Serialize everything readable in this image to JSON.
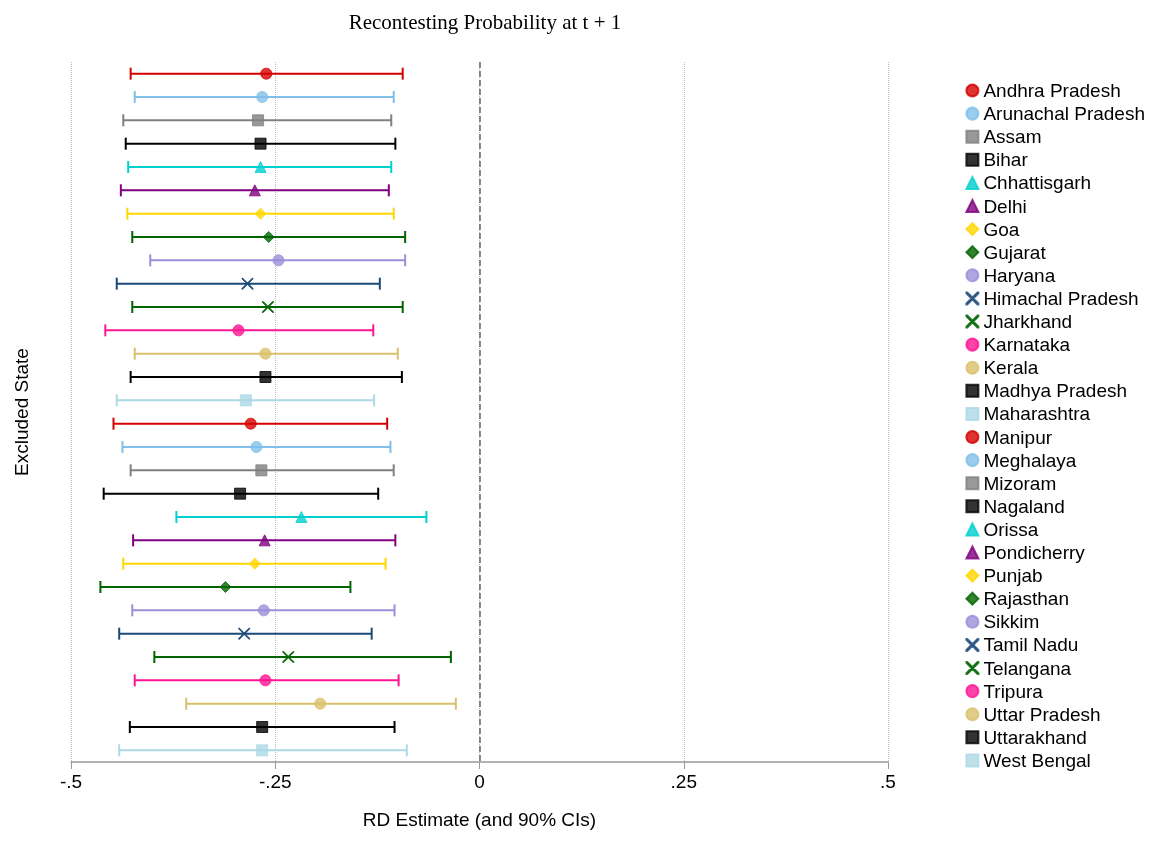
{
  "chart_data": {
    "type": "scatter",
    "orientation": "horizontal",
    "title": "Recontesting Probability at t + 1",
    "xlabel": "RD Estimate (and 90% CIs)",
    "ylabel": "Excluded State",
    "categories": [
      null,
      null,
      null,
      null,
      null,
      null,
      null,
      null,
      null,
      null,
      null,
      null,
      null,
      null,
      null,
      null,
      null,
      null,
      null,
      null,
      null,
      null,
      null,
      null,
      null,
      null,
      null,
      null,
      null,
      null
    ],
    "xlim": [
      -0.5,
      0.5
    ],
    "xticks": [
      {
        "value": -0.5,
        "label": "-.5"
      },
      {
        "value": -0.25,
        "label": "-.25"
      },
      0,
      {
        "value": 0.25,
        "label": ".25"
      },
      {
        "value": 0.5,
        "label": ".5"
      }
    ],
    "tick_labels": "x",
    "grid": "x",
    "legend": "right",
    "ref_lines": [
      {
        "axis": "x",
        "value": 0,
        "line_style": "dashed",
        "color": "#666666"
      }
    ],
    "series": [
      {
        "name": "Andhra Pradesh",
        "color": "#d40000",
        "marker": "circle",
        "values": [
          -0.261,
          null,
          null,
          null,
          null,
          null,
          null,
          null,
          null,
          null,
          null,
          null,
          null,
          null,
          null,
          null,
          null,
          null,
          null,
          null,
          null,
          null,
          null,
          null,
          null,
          null,
          null,
          null,
          null,
          null
        ],
        "errors": [
          [
            -0.427,
            -0.094
          ],
          null,
          null,
          null,
          null,
          null,
          null,
          null,
          null,
          null,
          null,
          null,
          null,
          null,
          null,
          null,
          null,
          null,
          null,
          null,
          null,
          null,
          null,
          null,
          null,
          null,
          null,
          null,
          null,
          null
        ]
      },
      {
        "name": "Arunachal Pradesh",
        "color": "#7fbfe8",
        "marker": "circle",
        "values": [
          null,
          -0.266,
          null,
          null,
          null,
          null,
          null,
          null,
          null,
          null,
          null,
          null,
          null,
          null,
          null,
          null,
          null,
          null,
          null,
          null,
          null,
          null,
          null,
          null,
          null,
          null,
          null,
          null,
          null,
          null
        ],
        "errors": [
          null,
          [
            -0.422,
            -0.105
          ],
          null,
          null,
          null,
          null,
          null,
          null,
          null,
          null,
          null,
          null,
          null,
          null,
          null,
          null,
          null,
          null,
          null,
          null,
          null,
          null,
          null,
          null,
          null,
          null,
          null,
          null,
          null,
          null
        ]
      },
      {
        "name": "Assam",
        "color": "#808080",
        "marker": "square",
        "values": [
          null,
          null,
          -0.271,
          null,
          null,
          null,
          null,
          null,
          null,
          null,
          null,
          null,
          null,
          null,
          null,
          null,
          null,
          null,
          null,
          null,
          null,
          null,
          null,
          null,
          null,
          null,
          null,
          null,
          null,
          null
        ],
        "errors": [
          null,
          null,
          [
            -0.436,
            -0.108
          ],
          null,
          null,
          null,
          null,
          null,
          null,
          null,
          null,
          null,
          null,
          null,
          null,
          null,
          null,
          null,
          null,
          null,
          null,
          null,
          null,
          null,
          null,
          null,
          null,
          null,
          null,
          null
        ]
      },
      {
        "name": "Bihar",
        "color": "#000000",
        "marker": "square",
        "values": [
          null,
          null,
          null,
          -0.268,
          null,
          null,
          null,
          null,
          null,
          null,
          null,
          null,
          null,
          null,
          null,
          null,
          null,
          null,
          null,
          null,
          null,
          null,
          null,
          null,
          null,
          null,
          null,
          null,
          null,
          null
        ],
        "errors": [
          null,
          null,
          null,
          [
            -0.433,
            -0.103
          ],
          null,
          null,
          null,
          null,
          null,
          null,
          null,
          null,
          null,
          null,
          null,
          null,
          null,
          null,
          null,
          null,
          null,
          null,
          null,
          null,
          null,
          null,
          null,
          null,
          null,
          null
        ]
      },
      {
        "name": "Chhattisgarh",
        "color": "#00d0d0",
        "marker": "triangle",
        "values": [
          null,
          null,
          null,
          null,
          -0.268,
          null,
          null,
          null,
          null,
          null,
          null,
          null,
          null,
          null,
          null,
          null,
          null,
          null,
          null,
          null,
          null,
          null,
          null,
          null,
          null,
          null,
          null,
          null,
          null,
          null
        ],
        "errors": [
          null,
          null,
          null,
          null,
          [
            -0.43,
            -0.108
          ],
          null,
          null,
          null,
          null,
          null,
          null,
          null,
          null,
          null,
          null,
          null,
          null,
          null,
          null,
          null,
          null,
          null,
          null,
          null,
          null,
          null,
          null,
          null,
          null,
          null
        ]
      },
      {
        "name": "Delhi",
        "color": "#800080",
        "marker": "triangle",
        "values": [
          null,
          null,
          null,
          null,
          null,
          -0.275,
          null,
          null,
          null,
          null,
          null,
          null,
          null,
          null,
          null,
          null,
          null,
          null,
          null,
          null,
          null,
          null,
          null,
          null,
          null,
          null,
          null,
          null,
          null,
          null
        ],
        "errors": [
          null,
          null,
          null,
          null,
          null,
          [
            -0.439,
            -0.111
          ],
          null,
          null,
          null,
          null,
          null,
          null,
          null,
          null,
          null,
          null,
          null,
          null,
          null,
          null,
          null,
          null,
          null,
          null,
          null,
          null,
          null,
          null,
          null,
          null
        ]
      },
      {
        "name": "Goa",
        "color": "#ffd700",
        "marker": "diamond",
        "values": [
          null,
          null,
          null,
          null,
          null,
          null,
          -0.268,
          null,
          null,
          null,
          null,
          null,
          null,
          null,
          null,
          null,
          null,
          null,
          null,
          null,
          null,
          null,
          null,
          null,
          null,
          null,
          null,
          null,
          null,
          null
        ],
        "errors": [
          null,
          null,
          null,
          null,
          null,
          null,
          [
            -0.431,
            -0.105
          ],
          null,
          null,
          null,
          null,
          null,
          null,
          null,
          null,
          null,
          null,
          null,
          null,
          null,
          null,
          null,
          null,
          null,
          null,
          null,
          null,
          null,
          null,
          null
        ]
      },
      {
        "name": "Gujarat",
        "color": "#006400",
        "marker": "diamond",
        "values": [
          null,
          null,
          null,
          null,
          null,
          null,
          null,
          -0.258,
          null,
          null,
          null,
          null,
          null,
          null,
          null,
          null,
          null,
          null,
          null,
          null,
          null,
          null,
          null,
          null,
          null,
          null,
          null,
          null,
          null,
          null
        ],
        "errors": [
          null,
          null,
          null,
          null,
          null,
          null,
          null,
          [
            -0.425,
            -0.091
          ],
          null,
          null,
          null,
          null,
          null,
          null,
          null,
          null,
          null,
          null,
          null,
          null,
          null,
          null,
          null,
          null,
          null,
          null,
          null,
          null,
          null,
          null
        ]
      },
      {
        "name": "Haryana",
        "color": "#9b8fd9",
        "marker": "circle",
        "values": [
          null,
          null,
          null,
          null,
          null,
          null,
          null,
          null,
          -0.246,
          null,
          null,
          null,
          null,
          null,
          null,
          null,
          null,
          null,
          null,
          null,
          null,
          null,
          null,
          null,
          null,
          null,
          null,
          null,
          null,
          null
        ],
        "errors": [
          null,
          null,
          null,
          null,
          null,
          null,
          null,
          null,
          [
            -0.403,
            -0.091
          ],
          null,
          null,
          null,
          null,
          null,
          null,
          null,
          null,
          null,
          null,
          null,
          null,
          null,
          null,
          null,
          null,
          null,
          null,
          null,
          null,
          null
        ]
      },
      {
        "name": "Himachal Pradesh",
        "color": "#1a4a7a",
        "marker": "cross",
        "values": [
          null,
          null,
          null,
          null,
          null,
          null,
          null,
          null,
          null,
          -0.284,
          null,
          null,
          null,
          null,
          null,
          null,
          null,
          null,
          null,
          null,
          null,
          null,
          null,
          null,
          null,
          null,
          null,
          null,
          null,
          null
        ],
        "errors": [
          null,
          null,
          null,
          null,
          null,
          null,
          null,
          null,
          null,
          [
            -0.444,
            -0.122
          ],
          null,
          null,
          null,
          null,
          null,
          null,
          null,
          null,
          null,
          null,
          null,
          null,
          null,
          null,
          null,
          null,
          null,
          null,
          null,
          null
        ]
      },
      {
        "name": "Jharkhand",
        "color": "#006400",
        "marker": "cross",
        "values": [
          null,
          null,
          null,
          null,
          null,
          null,
          null,
          null,
          null,
          null,
          -0.259,
          null,
          null,
          null,
          null,
          null,
          null,
          null,
          null,
          null,
          null,
          null,
          null,
          null,
          null,
          null,
          null,
          null,
          null,
          null
        ],
        "errors": [
          null,
          null,
          null,
          null,
          null,
          null,
          null,
          null,
          null,
          null,
          [
            -0.425,
            -0.094
          ],
          null,
          null,
          null,
          null,
          null,
          null,
          null,
          null,
          null,
          null,
          null,
          null,
          null,
          null,
          null,
          null,
          null,
          null,
          null
        ]
      },
      {
        "name": "Karnataka",
        "color": "#ff1493",
        "marker": "circle",
        "values": [
          null,
          null,
          null,
          null,
          null,
          null,
          null,
          null,
          null,
          null,
          null,
          -0.295,
          null,
          null,
          null,
          null,
          null,
          null,
          null,
          null,
          null,
          null,
          null,
          null,
          null,
          null,
          null,
          null,
          null,
          null
        ],
        "errors": [
          null,
          null,
          null,
          null,
          null,
          null,
          null,
          null,
          null,
          null,
          null,
          [
            -0.458,
            -0.13
          ],
          null,
          null,
          null,
          null,
          null,
          null,
          null,
          null,
          null,
          null,
          null,
          null,
          null,
          null,
          null,
          null,
          null,
          null
        ]
      },
      {
        "name": "Kerala",
        "color": "#d9c06a",
        "marker": "circle",
        "values": [
          null,
          null,
          null,
          null,
          null,
          null,
          null,
          null,
          null,
          null,
          null,
          null,
          -0.262,
          null,
          null,
          null,
          null,
          null,
          null,
          null,
          null,
          null,
          null,
          null,
          null,
          null,
          null,
          null,
          null,
          null
        ],
        "errors": [
          null,
          null,
          null,
          null,
          null,
          null,
          null,
          null,
          null,
          null,
          null,
          null,
          [
            -0.422,
            -0.1
          ],
          null,
          null,
          null,
          null,
          null,
          null,
          null,
          null,
          null,
          null,
          null,
          null,
          null,
          null,
          null,
          null,
          null
        ]
      },
      {
        "name": "Madhya Pradesh",
        "color": "#000000",
        "marker": "square",
        "values": [
          null,
          null,
          null,
          null,
          null,
          null,
          null,
          null,
          null,
          null,
          null,
          null,
          null,
          -0.262,
          null,
          null,
          null,
          null,
          null,
          null,
          null,
          null,
          null,
          null,
          null,
          null,
          null,
          null,
          null,
          null
        ],
        "errors": [
          null,
          null,
          null,
          null,
          null,
          null,
          null,
          null,
          null,
          null,
          null,
          null,
          null,
          [
            -0.427,
            -0.095
          ],
          null,
          null,
          null,
          null,
          null,
          null,
          null,
          null,
          null,
          null,
          null,
          null,
          null,
          null,
          null,
          null
        ]
      },
      {
        "name": "Maharashtra",
        "color": "#add8e6",
        "marker": "square",
        "values": [
          null,
          null,
          null,
          null,
          null,
          null,
          null,
          null,
          null,
          null,
          null,
          null,
          null,
          null,
          -0.286,
          null,
          null,
          null,
          null,
          null,
          null,
          null,
          null,
          null,
          null,
          null,
          null,
          null,
          null,
          null
        ],
        "errors": [
          null,
          null,
          null,
          null,
          null,
          null,
          null,
          null,
          null,
          null,
          null,
          null,
          null,
          null,
          [
            -0.444,
            -0.129
          ],
          null,
          null,
          null,
          null,
          null,
          null,
          null,
          null,
          null,
          null,
          null,
          null,
          null,
          null,
          null
        ]
      },
      {
        "name": "Manipur",
        "color": "#d40000",
        "marker": "circle",
        "values": [
          null,
          null,
          null,
          null,
          null,
          null,
          null,
          null,
          null,
          null,
          null,
          null,
          null,
          null,
          null,
          -0.28,
          null,
          null,
          null,
          null,
          null,
          null,
          null,
          null,
          null,
          null,
          null,
          null,
          null,
          null
        ],
        "errors": [
          null,
          null,
          null,
          null,
          null,
          null,
          null,
          null,
          null,
          null,
          null,
          null,
          null,
          null,
          null,
          [
            -0.448,
            -0.113
          ],
          null,
          null,
          null,
          null,
          null,
          null,
          null,
          null,
          null,
          null,
          null,
          null,
          null,
          null
        ]
      },
      {
        "name": "Meghalaya",
        "color": "#7fbfe8",
        "marker": "circle",
        "values": [
          null,
          null,
          null,
          null,
          null,
          null,
          null,
          null,
          null,
          null,
          null,
          null,
          null,
          null,
          null,
          null,
          -0.273,
          null,
          null,
          null,
          null,
          null,
          null,
          null,
          null,
          null,
          null,
          null,
          null,
          null
        ],
        "errors": [
          null,
          null,
          null,
          null,
          null,
          null,
          null,
          null,
          null,
          null,
          null,
          null,
          null,
          null,
          null,
          null,
          [
            -0.437,
            -0.109
          ],
          null,
          null,
          null,
          null,
          null,
          null,
          null,
          null,
          null,
          null,
          null,
          null,
          null
        ]
      },
      {
        "name": "Mizoram",
        "color": "#808080",
        "marker": "square",
        "values": [
          null,
          null,
          null,
          null,
          null,
          null,
          null,
          null,
          null,
          null,
          null,
          null,
          null,
          null,
          null,
          null,
          null,
          -0.267,
          null,
          null,
          null,
          null,
          null,
          null,
          null,
          null,
          null,
          null,
          null,
          null
        ],
        "errors": [
          null,
          null,
          null,
          null,
          null,
          null,
          null,
          null,
          null,
          null,
          null,
          null,
          null,
          null,
          null,
          null,
          null,
          [
            -0.427,
            -0.105
          ],
          null,
          null,
          null,
          null,
          null,
          null,
          null,
          null,
          null,
          null,
          null,
          null
        ]
      },
      {
        "name": "Nagaland",
        "color": "#000000",
        "marker": "square",
        "values": [
          null,
          null,
          null,
          null,
          null,
          null,
          null,
          null,
          null,
          null,
          null,
          null,
          null,
          null,
          null,
          null,
          null,
          null,
          -0.293,
          null,
          null,
          null,
          null,
          null,
          null,
          null,
          null,
          null,
          null,
          null
        ],
        "errors": [
          null,
          null,
          null,
          null,
          null,
          null,
          null,
          null,
          null,
          null,
          null,
          null,
          null,
          null,
          null,
          null,
          null,
          null,
          [
            -0.46,
            -0.124
          ],
          null,
          null,
          null,
          null,
          null,
          null,
          null,
          null,
          null,
          null,
          null
        ]
      },
      {
        "name": "Orissa",
        "color": "#00d0d0",
        "marker": "triangle",
        "values": [
          null,
          null,
          null,
          null,
          null,
          null,
          null,
          null,
          null,
          null,
          null,
          null,
          null,
          null,
          null,
          null,
          null,
          null,
          null,
          -0.218,
          null,
          null,
          null,
          null,
          null,
          null,
          null,
          null,
          null,
          null
        ],
        "errors": [
          null,
          null,
          null,
          null,
          null,
          null,
          null,
          null,
          null,
          null,
          null,
          null,
          null,
          null,
          null,
          null,
          null,
          null,
          null,
          [
            -0.371,
            -0.065
          ],
          null,
          null,
          null,
          null,
          null,
          null,
          null,
          null,
          null,
          null
        ]
      },
      {
        "name": "Pondicherry",
        "color": "#800080",
        "marker": "triangle",
        "values": [
          null,
          null,
          null,
          null,
          null,
          null,
          null,
          null,
          null,
          null,
          null,
          null,
          null,
          null,
          null,
          null,
          null,
          null,
          null,
          null,
          -0.263,
          null,
          null,
          null,
          null,
          null,
          null,
          null,
          null,
          null
        ],
        "errors": [
          null,
          null,
          null,
          null,
          null,
          null,
          null,
          null,
          null,
          null,
          null,
          null,
          null,
          null,
          null,
          null,
          null,
          null,
          null,
          null,
          [
            -0.424,
            -0.103
          ],
          null,
          null,
          null,
          null,
          null,
          null,
          null,
          null,
          null
        ]
      },
      {
        "name": "Punjab",
        "color": "#ffd700",
        "marker": "diamond",
        "values": [
          null,
          null,
          null,
          null,
          null,
          null,
          null,
          null,
          null,
          null,
          null,
          null,
          null,
          null,
          null,
          null,
          null,
          null,
          null,
          null,
          null,
          -0.275,
          null,
          null,
          null,
          null,
          null,
          null,
          null,
          null
        ],
        "errors": [
          null,
          null,
          null,
          null,
          null,
          null,
          null,
          null,
          null,
          null,
          null,
          null,
          null,
          null,
          null,
          null,
          null,
          null,
          null,
          null,
          null,
          [
            -0.436,
            -0.115
          ],
          null,
          null,
          null,
          null,
          null,
          null,
          null,
          null
        ]
      },
      {
        "name": "Rajasthan",
        "color": "#006400",
        "marker": "diamond",
        "values": [
          null,
          null,
          null,
          null,
          null,
          null,
          null,
          null,
          null,
          null,
          null,
          null,
          null,
          null,
          null,
          null,
          null,
          null,
          null,
          null,
          null,
          null,
          -0.311,
          null,
          null,
          null,
          null,
          null,
          null,
          null
        ],
        "errors": [
          null,
          null,
          null,
          null,
          null,
          null,
          null,
          null,
          null,
          null,
          null,
          null,
          null,
          null,
          null,
          null,
          null,
          null,
          null,
          null,
          null,
          null,
          [
            -0.464,
            -0.158
          ],
          null,
          null,
          null,
          null,
          null,
          null,
          null
        ]
      },
      {
        "name": "Sikkim",
        "color": "#9b8fd9",
        "marker": "circle",
        "values": [
          null,
          null,
          null,
          null,
          null,
          null,
          null,
          null,
          null,
          null,
          null,
          null,
          null,
          null,
          null,
          null,
          null,
          null,
          null,
          null,
          null,
          null,
          null,
          -0.264,
          null,
          null,
          null,
          null,
          null,
          null
        ],
        "errors": [
          null,
          null,
          null,
          null,
          null,
          null,
          null,
          null,
          null,
          null,
          null,
          null,
          null,
          null,
          null,
          null,
          null,
          null,
          null,
          null,
          null,
          null,
          null,
          [
            -0.425,
            -0.104
          ],
          null,
          null,
          null,
          null,
          null,
          null
        ]
      },
      {
        "name": "Tamil Nadu",
        "color": "#1a4a7a",
        "marker": "cross",
        "values": [
          null,
          null,
          null,
          null,
          null,
          null,
          null,
          null,
          null,
          null,
          null,
          null,
          null,
          null,
          null,
          null,
          null,
          null,
          null,
          null,
          null,
          null,
          null,
          null,
          -0.288,
          null,
          null,
          null,
          null,
          null
        ],
        "errors": [
          null,
          null,
          null,
          null,
          null,
          null,
          null,
          null,
          null,
          null,
          null,
          null,
          null,
          null,
          null,
          null,
          null,
          null,
          null,
          null,
          null,
          null,
          null,
          null,
          [
            -0.441,
            -0.132
          ],
          null,
          null,
          null,
          null,
          null
        ]
      },
      {
        "name": "Telangana",
        "color": "#006400",
        "marker": "cross",
        "values": [
          null,
          null,
          null,
          null,
          null,
          null,
          null,
          null,
          null,
          null,
          null,
          null,
          null,
          null,
          null,
          null,
          null,
          null,
          null,
          null,
          null,
          null,
          null,
          null,
          null,
          -0.234,
          null,
          null,
          null,
          null
        ],
        "errors": [
          null,
          null,
          null,
          null,
          null,
          null,
          null,
          null,
          null,
          null,
          null,
          null,
          null,
          null,
          null,
          null,
          null,
          null,
          null,
          null,
          null,
          null,
          null,
          null,
          null,
          [
            -0.398,
            -0.035
          ],
          null,
          null,
          null,
          null
        ]
      },
      {
        "name": "Tripura",
        "color": "#ff1493",
        "marker": "circle",
        "values": [
          null,
          null,
          null,
          null,
          null,
          null,
          null,
          null,
          null,
          null,
          null,
          null,
          null,
          null,
          null,
          null,
          null,
          null,
          null,
          null,
          null,
          null,
          null,
          null,
          null,
          null,
          -0.262,
          null,
          null,
          null
        ],
        "errors": [
          null,
          null,
          null,
          null,
          null,
          null,
          null,
          null,
          null,
          null,
          null,
          null,
          null,
          null,
          null,
          null,
          null,
          null,
          null,
          null,
          null,
          null,
          null,
          null,
          null,
          null,
          [
            -0.422,
            -0.099
          ],
          null,
          null,
          null
        ]
      },
      {
        "name": "Uttar Pradesh",
        "color": "#d9c06a",
        "marker": "circle",
        "values": [
          null,
          null,
          null,
          null,
          null,
          null,
          null,
          null,
          null,
          null,
          null,
          null,
          null,
          null,
          null,
          null,
          null,
          null,
          null,
          null,
          null,
          null,
          null,
          null,
          null,
          null,
          null,
          -0.195,
          null,
          null
        ],
        "errors": [
          null,
          null,
          null,
          null,
          null,
          null,
          null,
          null,
          null,
          null,
          null,
          null,
          null,
          null,
          null,
          null,
          null,
          null,
          null,
          null,
          null,
          null,
          null,
          null,
          null,
          null,
          null,
          [
            -0.359,
            -0.029
          ],
          null,
          null
        ]
      },
      {
        "name": "Uttarakhand",
        "color": "#000000",
        "marker": "square",
        "values": [
          null,
          null,
          null,
          null,
          null,
          null,
          null,
          null,
          null,
          null,
          null,
          null,
          null,
          null,
          null,
          null,
          null,
          null,
          null,
          null,
          null,
          null,
          null,
          null,
          null,
          null,
          null,
          null,
          -0.266,
          null
        ],
        "errors": [
          null,
          null,
          null,
          null,
          null,
          null,
          null,
          null,
          null,
          null,
          null,
          null,
          null,
          null,
          null,
          null,
          null,
          null,
          null,
          null,
          null,
          null,
          null,
          null,
          null,
          null,
          null,
          null,
          [
            -0.428,
            -0.104
          ],
          null
        ]
      },
      {
        "name": "West Bengal",
        "color": "#add8e6",
        "marker": "square",
        "values": [
          null,
          null,
          null,
          null,
          null,
          null,
          null,
          null,
          null,
          null,
          null,
          null,
          null,
          null,
          null,
          null,
          null,
          null,
          null,
          null,
          null,
          null,
          null,
          null,
          null,
          null,
          null,
          null,
          null,
          -0.266
        ],
        "errors": [
          null,
          null,
          null,
          null,
          null,
          null,
          null,
          null,
          null,
          null,
          null,
          null,
          null,
          null,
          null,
          null,
          null,
          null,
          null,
          null,
          null,
          null,
          null,
          null,
          null,
          null,
          null,
          null,
          null,
          [
            -0.441,
            -0.089
          ]
        ]
      }
    ]
  }
}
